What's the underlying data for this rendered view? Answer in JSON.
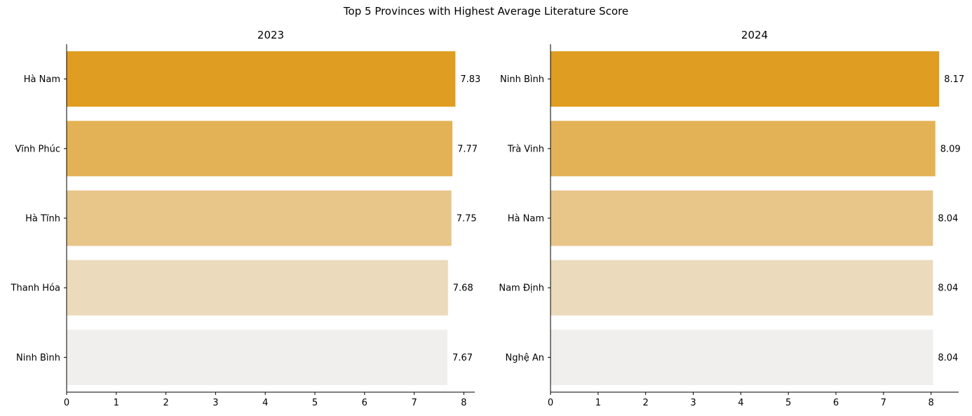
{
  "figure": {
    "title": "Top 5 Provinces with Highest Average Literature Score"
  },
  "palette": [
    "#df9d21",
    "#e3b256",
    "#e8c589",
    "#ecdabd",
    "#f0efed"
  ],
  "chart_data": [
    {
      "type": "bar",
      "orientation": "horizontal",
      "title": "2023",
      "categories": [
        "Hà Nam",
        "Vĩnh Phúc",
        "Hà Tĩnh",
        "Thanh Hóa",
        "Ninh Bình"
      ],
      "values": [
        7.83,
        7.77,
        7.75,
        7.68,
        7.67
      ],
      "value_labels": [
        "7.83",
        "7.77",
        "7.75",
        "7.68",
        "7.67"
      ],
      "xlim": [
        0,
        8.22
      ],
      "xticks": [
        "0",
        "1",
        "2",
        "3",
        "4",
        "5",
        "6",
        "7",
        "8"
      ],
      "xlabel": "",
      "ylabel": "",
      "grid": false
    },
    {
      "type": "bar",
      "orientation": "horizontal",
      "title": "2024",
      "categories": [
        "Ninh Bình",
        "Trà Vinh",
        "Hà Nam",
        "Nam Định",
        "Nghệ An"
      ],
      "values": [
        8.17,
        8.09,
        8.04,
        8.04,
        8.04
      ],
      "value_labels": [
        "8.17",
        "8.09",
        "8.04",
        "8.04",
        "8.04"
      ],
      "xlim": [
        0,
        8.58
      ],
      "xticks": [
        "0",
        "1",
        "2",
        "3",
        "4",
        "5",
        "6",
        "7",
        "8"
      ],
      "xlabel": "",
      "ylabel": "",
      "grid": false
    }
  ]
}
